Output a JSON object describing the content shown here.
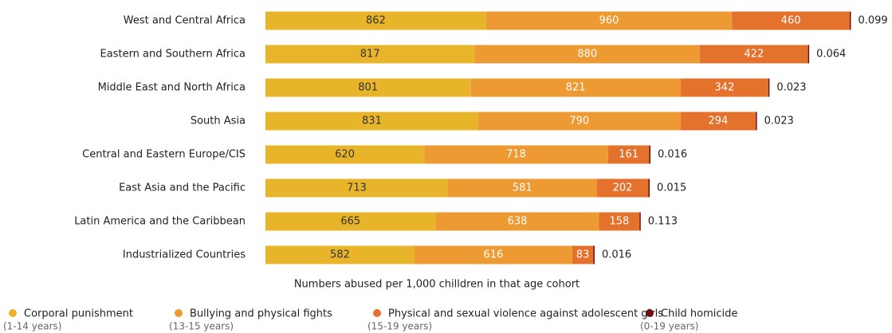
{
  "chart_data": {
    "type": "stacked_bar_horizontal",
    "categories": [
      "West and Central Africa",
      "Eastern and Southern Africa",
      "Middle East and North Africa",
      "South Asia",
      "Central and Eastern Europe/CIS",
      "East Asia and the Pacific",
      "Latin America and the Caribbean",
      "Industrialized Countries"
    ],
    "series": [
      {
        "name": "Corporal punishment",
        "age_range": "(1-14 years)",
        "color": "#e8b52a",
        "label_color": "#333333",
        "values": [
          862,
          817,
          801,
          831,
          620,
          713,
          665,
          582
        ]
      },
      {
        "name": "Bullying and physical fights",
        "age_range": "(13-15 years)",
        "color": "#ee9a32",
        "label_color": "#ffffff",
        "values": [
          960,
          880,
          821,
          790,
          718,
          581,
          638,
          616
        ]
      },
      {
        "name": "Physical and sexual violence against adolescent girls",
        "age_range": "(15-19 years)",
        "color": "#e4722d",
        "label_color": "#ffffff",
        "values": [
          460,
          422,
          342,
          294,
          161,
          202,
          158,
          83
        ]
      },
      {
        "name": "Child homicide",
        "age_range": "(0-19 years)",
        "color": "#6b0f12",
        "label_color": "#222222",
        "values": [
          0.099,
          0.064,
          0.023,
          0.023,
          0.016,
          0.015,
          0.113,
          0.016
        ]
      }
    ],
    "x_label": "Numbers abused per 1,000 chilldren in that age cohort"
  }
}
